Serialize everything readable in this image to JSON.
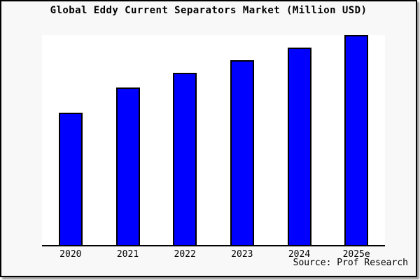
{
  "window": {
    "canvas_background": "#f8f8f8",
    "plot_background": "#ffffff",
    "border_color": "#000000"
  },
  "chart_data": {
    "type": "bar",
    "title": "Global Eddy Current Separators Market (Million USD)",
    "categories": [
      "2020",
      "2021",
      "2022",
      "2023",
      "2024",
      "2025e"
    ],
    "values": [
      63,
      75,
      82,
      88,
      94,
      100
    ],
    "value_note": "no y-axis or data labels shown; values are relative bar heights with tallest bar (2025e) = 100",
    "xlabel": "",
    "ylabel": "",
    "ylim": [
      0,
      100
    ],
    "grid": false,
    "legend": false,
    "bar_color": "#0000ff",
    "bar_border_color": "#000000",
    "source_note": "Source: Prof Research"
  }
}
